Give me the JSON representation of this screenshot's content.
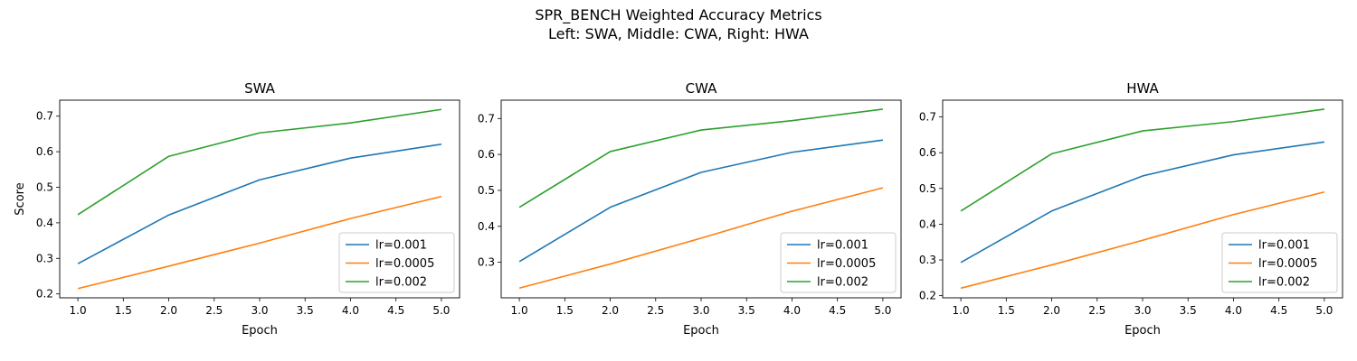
{
  "figure": {
    "title_line1": "SPR_BENCH Weighted Accuracy Metrics",
    "title_line2": "Left: SWA, Middle: CWA, Right: HWA"
  },
  "colors": {
    "lr=0.001": "#1f77b4",
    "lr=0.0005": "#ff7f0e",
    "lr=0.002": "#2ca02c"
  },
  "chart_data": [
    {
      "type": "line",
      "title": "SWA",
      "xlabel": "Epoch",
      "ylabel": "Score",
      "x": [
        1,
        2,
        3,
        4,
        5
      ],
      "xlim": [
        0.8,
        5.2
      ],
      "ylim": [
        0.189,
        0.745
      ],
      "xticks": [
        "1.0",
        "1.5",
        "2.0",
        "2.5",
        "3.0",
        "3.5",
        "4.0",
        "4.5",
        "5.0"
      ],
      "yticks": [
        "0.2",
        "0.3",
        "0.4",
        "0.5",
        "0.6",
        "0.7"
      ],
      "grid": false,
      "legend": "lower right",
      "series": [
        {
          "name": "lr=0.001",
          "values": [
            0.285,
            0.422,
            0.521,
            0.582,
            0.621
          ]
        },
        {
          "name": "lr=0.0005",
          "values": [
            0.215,
            0.278,
            0.343,
            0.412,
            0.474
          ]
        },
        {
          "name": "lr=0.002",
          "values": [
            0.423,
            0.587,
            0.653,
            0.681,
            0.719
          ]
        }
      ]
    },
    {
      "type": "line",
      "title": "CWA",
      "xlabel": "Epoch",
      "ylabel": "",
      "x": [
        1,
        2,
        3,
        4,
        5
      ],
      "xlim": [
        0.8,
        5.2
      ],
      "ylim": [
        0.201,
        0.751
      ],
      "xticks": [
        "1.0",
        "1.5",
        "2.0",
        "2.5",
        "3.0",
        "3.5",
        "4.0",
        "4.5",
        "5.0"
      ],
      "yticks": [
        "0.3",
        "0.4",
        "0.5",
        "0.6",
        "0.7"
      ],
      "grid": false,
      "legend": "lower right",
      "series": [
        {
          "name": "lr=0.001",
          "values": [
            0.302,
            0.453,
            0.55,
            0.606,
            0.64
          ]
        },
        {
          "name": "lr=0.0005",
          "values": [
            0.228,
            0.295,
            0.367,
            0.442,
            0.507
          ]
        },
        {
          "name": "lr=0.002",
          "values": [
            0.453,
            0.608,
            0.668,
            0.694,
            0.726
          ]
        }
      ]
    },
    {
      "type": "line",
      "title": "HWA",
      "xlabel": "Epoch",
      "ylabel": "",
      "x": [
        1,
        2,
        3,
        4,
        5
      ],
      "xlim": [
        0.8,
        5.2
      ],
      "ylim": [
        0.194,
        0.747
      ],
      "xticks": [
        "1.0",
        "1.5",
        "2.0",
        "2.5",
        "3.0",
        "3.5",
        "4.0",
        "4.5",
        "5.0"
      ],
      "yticks": [
        "0.2",
        "0.3",
        "0.4",
        "0.5",
        "0.6",
        "0.7"
      ],
      "grid": false,
      "legend": "lower right",
      "series": [
        {
          "name": "lr=0.001",
          "values": [
            0.293,
            0.437,
            0.535,
            0.594,
            0.63
          ]
        },
        {
          "name": "lr=0.0005",
          "values": [
            0.221,
            0.286,
            0.355,
            0.427,
            0.49
          ]
        },
        {
          "name": "lr=0.002",
          "values": [
            0.437,
            0.597,
            0.661,
            0.687,
            0.722
          ]
        }
      ]
    }
  ]
}
